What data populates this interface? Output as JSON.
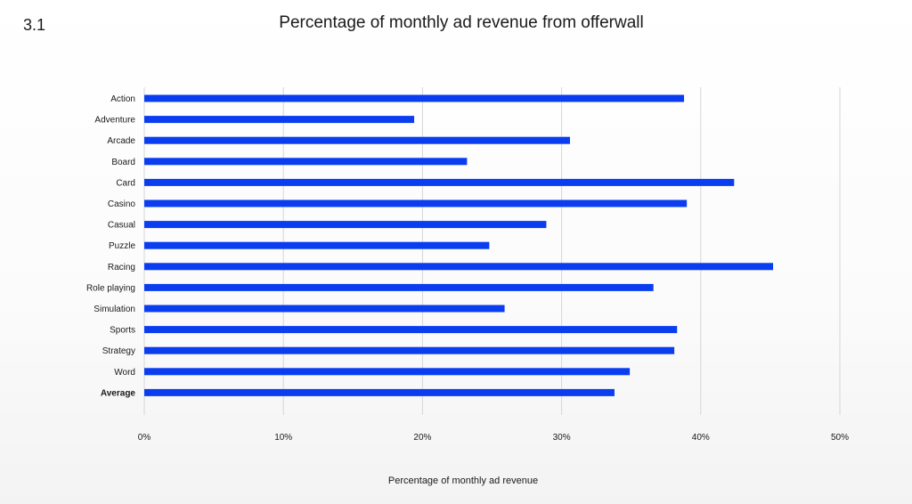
{
  "slide": {
    "number": "3.1"
  },
  "chart_data": {
    "type": "bar",
    "orientation": "horizontal",
    "title": "Percentage of monthly ad revenue from offerwall",
    "xlabel": "Percentage of monthly ad revenue",
    "ylabel": "",
    "categories": [
      "Action",
      "Adventure",
      "Arcade",
      "Board",
      "Card",
      "Casino",
      "Casual",
      "Puzzle",
      "Racing",
      "Role playing",
      "Simulation",
      "Sports",
      "Strategy",
      "Word",
      "Average"
    ],
    "values": [
      38.8,
      19.4,
      30.6,
      23.2,
      42.4,
      39.0,
      28.9,
      24.8,
      45.2,
      36.6,
      25.9,
      38.3,
      38.1,
      34.9,
      33.8
    ],
    "xlim": [
      0,
      50
    ],
    "xticks": [
      0,
      10,
      20,
      30,
      40,
      50
    ],
    "xtick_labels": [
      "0%",
      "10%",
      "20%",
      "30%",
      "40%",
      "50%"
    ],
    "grid": "vertical",
    "legend": "none",
    "bold_categories": [
      "Average"
    ],
    "colors": {
      "bar": "#0a3df0",
      "grid": "#d6d6d6",
      "text": "#1a1a1a"
    }
  }
}
